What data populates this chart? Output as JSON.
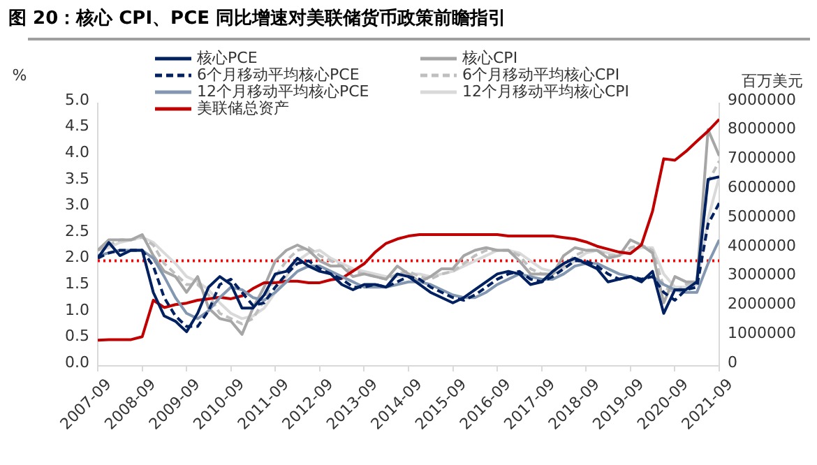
{
  "chart_data": {
    "type": "line",
    "title": "图 20：核心 CPI、PCE 同比增速对美联储货币政策前瞻指引",
    "ylabel": "%",
    "y2label": "百万美元",
    "x": [
      "2007-09",
      "2007-12",
      "2008-03",
      "2008-06",
      "2008-09",
      "2008-12",
      "2009-03",
      "2009-06",
      "2009-09",
      "2009-12",
      "2010-03",
      "2010-06",
      "2010-09",
      "2010-12",
      "2011-03",
      "2011-06",
      "2011-09",
      "2011-12",
      "2012-03",
      "2012-06",
      "2012-09",
      "2012-12",
      "2013-03",
      "2013-06",
      "2013-09",
      "2013-12",
      "2014-03",
      "2014-06",
      "2014-09",
      "2014-12",
      "2015-03",
      "2015-06",
      "2015-09",
      "2015-12",
      "2016-03",
      "2016-06",
      "2016-09",
      "2016-12",
      "2017-03",
      "2017-06",
      "2017-09",
      "2017-12",
      "2018-03",
      "2018-06",
      "2018-09",
      "2018-12",
      "2019-03",
      "2019-06",
      "2019-09",
      "2019-12",
      "2020-03",
      "2020-06",
      "2020-09",
      "2020-12",
      "2021-03",
      "2021-06",
      "2021-09"
    ],
    "series": [
      {
        "name": "核心PCE",
        "color": "#002060",
        "line_style": "solid",
        "values": [
          2.05,
          2.35,
          2.1,
          2.2,
          2.2,
          1.4,
          0.95,
          0.85,
          0.65,
          1.0,
          1.5,
          1.7,
          1.55,
          1.1,
          1.1,
          1.35,
          1.75,
          1.8,
          2.05,
          1.9,
          1.8,
          1.75,
          1.55,
          1.45,
          1.55,
          1.55,
          1.5,
          1.75,
          1.7,
          1.55,
          1.4,
          1.3,
          1.2,
          1.3,
          1.45,
          1.6,
          1.75,
          1.8,
          1.75,
          1.55,
          1.6,
          1.8,
          1.95,
          2.05,
          1.95,
          1.85,
          1.6,
          1.65,
          1.7,
          1.6,
          1.8,
          1.0,
          1.45,
          1.45,
          1.6,
          3.55,
          3.6
        ]
      },
      {
        "name": "6个月移动平均核心PCE",
        "color": "#002060",
        "line_style": "dashed",
        "values": [
          2.05,
          2.15,
          2.2,
          2.2,
          2.2,
          1.9,
          1.3,
          0.95,
          0.75,
          0.75,
          1.05,
          1.55,
          1.65,
          1.4,
          1.15,
          1.2,
          1.5,
          1.75,
          1.95,
          2.0,
          1.85,
          1.75,
          1.65,
          1.5,
          1.5,
          1.55,
          1.5,
          1.6,
          1.7,
          1.65,
          1.5,
          1.4,
          1.3,
          1.25,
          1.35,
          1.5,
          1.65,
          1.75,
          1.8,
          1.65,
          1.6,
          1.7,
          1.85,
          2.0,
          2.0,
          1.9,
          1.75,
          1.65,
          1.7,
          1.65,
          1.7,
          1.4,
          1.25,
          1.45,
          1.5,
          2.7,
          3.1
        ]
      },
      {
        "name": "12个月移动平均核心PCE",
        "color": "#8497b0",
        "line_style": "solid",
        "values": [
          2.1,
          2.15,
          2.2,
          2.2,
          2.2,
          2.05,
          1.7,
          1.3,
          1.0,
          0.9,
          1.05,
          1.3,
          1.5,
          1.45,
          1.3,
          1.25,
          1.4,
          1.6,
          1.8,
          1.9,
          1.9,
          1.8,
          1.7,
          1.6,
          1.5,
          1.5,
          1.5,
          1.55,
          1.6,
          1.6,
          1.55,
          1.45,
          1.35,
          1.3,
          1.3,
          1.4,
          1.55,
          1.65,
          1.75,
          1.7,
          1.65,
          1.65,
          1.75,
          1.9,
          1.95,
          1.95,
          1.85,
          1.75,
          1.7,
          1.65,
          1.7,
          1.55,
          1.45,
          1.4,
          1.4,
          1.95,
          2.4
        ]
      },
      {
        "name": "美联储总资产",
        "color": "#c00000",
        "line_style": "solid",
        "axis": "y2",
        "values": [
          880000,
          900000,
          900000,
          900000,
          1000000,
          2250000,
          2000000,
          2100000,
          2150000,
          2250000,
          2300000,
          2350000,
          2300000,
          2400000,
          2650000,
          2850000,
          2850000,
          2900000,
          2900000,
          2850000,
          2850000,
          2950000,
          3000000,
          3250000,
          3500000,
          3900000,
          4200000,
          4350000,
          4450000,
          4500000,
          4500000,
          4500000,
          4500000,
          4500000,
          4500000,
          4500000,
          4500000,
          4450000,
          4450000,
          4450000,
          4450000,
          4450000,
          4400000,
          4350000,
          4250000,
          4100000,
          4000000,
          3900000,
          3850000,
          4150000,
          5300000,
          7100000,
          7050000,
          7350000,
          7700000,
          8050000,
          8450000
        ]
      },
      {
        "name": "核心CPI",
        "color": "#a6a6a6",
        "line_style": "solid",
        "values": [
          2.2,
          2.4,
          2.4,
          2.4,
          2.5,
          2.1,
          1.8,
          1.7,
          1.4,
          1.7,
          1.1,
          0.9,
          0.85,
          0.6,
          1.1,
          1.5,
          2.0,
          2.2,
          2.3,
          2.2,
          2.0,
          1.9,
          1.9,
          1.7,
          1.75,
          1.7,
          1.65,
          1.9,
          1.75,
          1.6,
          1.7,
          1.85,
          1.85,
          2.1,
          2.2,
          2.25,
          2.2,
          2.2,
          2.0,
          1.75,
          1.75,
          1.75,
          2.1,
          2.25,
          2.2,
          2.2,
          2.05,
          2.1,
          2.4,
          2.3,
          2.15,
          1.2,
          1.7,
          1.6,
          1.6,
          4.5,
          4.0
        ]
      },
      {
        "name": "6个月移动平均核心CPI",
        "color": "#bfbfbf",
        "line_style": "dashed",
        "values": [
          2.2,
          2.3,
          2.4,
          2.4,
          2.45,
          2.3,
          1.95,
          1.75,
          1.55,
          1.55,
          1.35,
          1.0,
          0.9,
          0.8,
          0.9,
          1.25,
          1.7,
          2.0,
          2.2,
          2.25,
          2.1,
          2.0,
          1.9,
          1.8,
          1.75,
          1.7,
          1.65,
          1.75,
          1.8,
          1.7,
          1.65,
          1.75,
          1.8,
          1.95,
          2.1,
          2.2,
          2.2,
          2.2,
          2.1,
          1.85,
          1.75,
          1.75,
          1.9,
          2.1,
          2.2,
          2.2,
          2.1,
          2.1,
          2.25,
          2.3,
          2.2,
          1.5,
          1.4,
          1.55,
          1.6,
          3.5,
          3.9
        ]
      },
      {
        "name": "12个月移动平均核心CPI",
        "color": "#d9d9d9",
        "line_style": "solid",
        "values": [
          2.2,
          2.25,
          2.35,
          2.4,
          2.45,
          2.35,
          2.15,
          1.95,
          1.7,
          1.6,
          1.45,
          1.2,
          1.0,
          0.9,
          0.95,
          1.1,
          1.4,
          1.7,
          2.0,
          2.15,
          2.2,
          2.05,
          1.95,
          1.85,
          1.8,
          1.75,
          1.7,
          1.7,
          1.75,
          1.75,
          1.7,
          1.75,
          1.8,
          1.9,
          2.0,
          2.1,
          2.2,
          2.2,
          2.15,
          2.0,
          1.85,
          1.8,
          1.85,
          2.0,
          2.15,
          2.2,
          2.15,
          2.1,
          2.2,
          2.25,
          2.25,
          1.75,
          1.5,
          1.5,
          1.55,
          2.8,
          3.6
        ]
      }
    ],
    "xlim": [
      "2007-09",
      "2021-09"
    ],
    "xticks": [
      "2007-09",
      "2008-09",
      "2009-09",
      "2010-09",
      "2011-09",
      "2012-09",
      "2013-09",
      "2014-09",
      "2015-09",
      "2016-09",
      "2017-09",
      "2018-09",
      "2019-09",
      "2020-09",
      "2021-09"
    ],
    "ylim": [
      0,
      5
    ],
    "yticks": [
      {
        "value": 0,
        "label": "0.0"
      },
      {
        "value": 0.5,
        "label": "0.5"
      },
      {
        "value": 1,
        "label": "1.0"
      },
      {
        "value": 1.5,
        "label": "1.5"
      },
      {
        "value": 2,
        "label": "2.0"
      },
      {
        "value": 2.5,
        "label": "2.5"
      },
      {
        "value": 3,
        "label": "3.0"
      },
      {
        "value": 3.5,
        "label": "3.5"
      },
      {
        "value": 4,
        "label": "4.0"
      },
      {
        "value": 4.5,
        "label": "4.5"
      },
      {
        "value": 5,
        "label": "5.0"
      }
    ],
    "y2lim": [
      0,
      9000000
    ],
    "y2ticks": [
      0,
      1000000,
      2000000,
      3000000,
      4000000,
      5000000,
      6000000,
      7000000,
      8000000,
      9000000
    ],
    "ref_lines": [
      {
        "axis": "y",
        "value": 2,
        "color": "#ff0000",
        "line_style": "dotted"
      }
    ],
    "grid": false,
    "legend": "top",
    "marker": "none"
  }
}
